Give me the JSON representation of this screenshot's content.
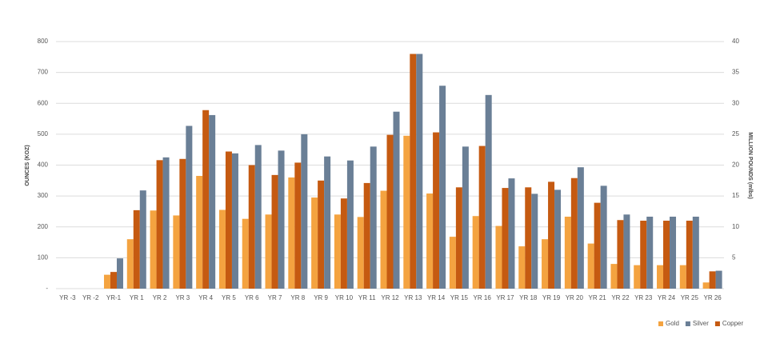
{
  "chart_data": {
    "type": "bar",
    "y_label": "OUNCES (KOZ)",
    "y2_label": "MILLION POUNDS (mlbs)",
    "categories": [
      "YR -3",
      "YR -2",
      "YR-1",
      "YR 1",
      "YR 2",
      "YR 3",
      "YR 4",
      "YR 5",
      "YR 6",
      "YR 7",
      "YR 8",
      "YR 9",
      "YR 10",
      "YR 11",
      "YR 12",
      "YR 13",
      "YR 14",
      "YR 15",
      "YR 16",
      "YR 17",
      "YR 18",
      "YR 19",
      "YR 20",
      "YR 21",
      "YR 22",
      "YR 23",
      "YR 24",
      "YR 25",
      "YR 26"
    ],
    "series": [
      {
        "name": "Gold",
        "color": "#f4a340",
        "values": [
          0,
          0,
          45,
          160,
          253,
          237,
          365,
          255,
          226,
          240,
          360,
          295,
          240,
          232,
          317,
          495,
          308,
          168,
          235,
          203,
          137,
          160,
          233,
          146,
          80,
          76,
          76,
          76,
          20
        ]
      },
      {
        "name": "Silver",
        "color": "#6a7f96",
        "values": [
          0,
          0,
          98,
          318,
          425,
          527,
          562,
          438,
          465,
          447,
          500,
          428,
          415,
          460,
          573,
          760,
          657,
          460,
          627,
          357,
          307,
          320,
          393,
          333,
          240,
          233,
          233,
          233,
          58
        ]
      },
      {
        "name": "Copper",
        "color": "#c55a11",
        "axis": "y2",
        "values": [
          0,
          0,
          2.7,
          12.7,
          20.8,
          21.0,
          28.9,
          22.2,
          20.0,
          18.4,
          20.4,
          17.5,
          14.6,
          17.1,
          24.9,
          38.0,
          25.3,
          16.4,
          23.1,
          16.3,
          16.4,
          17.3,
          17.9,
          13.9,
          11.1,
          11.0,
          11.0,
          11.0,
          2.8
        ]
      }
    ],
    "ylim": [
      0,
      800
    ],
    "yticks": [
      {
        "value": 0,
        "label": "-"
      },
      100,
      200,
      300,
      400,
      500,
      600,
      700,
      800
    ],
    "y2lim": [
      0,
      40
    ],
    "y2ticks": [
      5,
      10,
      15,
      20,
      25,
      30,
      35,
      40
    ],
    "grid": true,
    "legend": "bottom-right"
  }
}
